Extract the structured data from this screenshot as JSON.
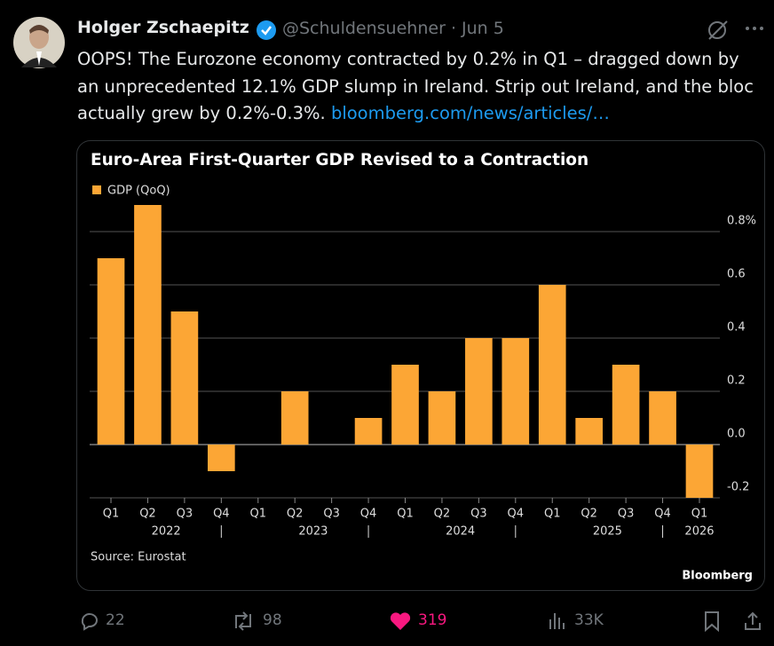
{
  "tweet": {
    "author": "Holger Zschaepitz",
    "handle": "@Schuldensuehner",
    "date": "· Jun 5",
    "text": "OOPS! The Eurozone economy contracted by 0.2% in Q1 – dragged down by an unprecedented 12.1% GDP slump  in Ireland. Strip out Ireland, and the bloc actually grew by 0.2%-0.3%.",
    "link": "bloomberg.com/news/articles/…",
    "replies": 22,
    "reposts": 98,
    "likes": 319,
    "views": "33K"
  },
  "chart_data": {
    "type": "bar",
    "title": "Euro-Area First-Quarter GDP Revised to a Contraction",
    "legend": "GDP (QoQ)",
    "source": "Source: Eurostat",
    "brand": "Bloomberg",
    "categories": [
      "Q1",
      "Q2",
      "Q3",
      "Q4",
      "Q1",
      "Q2",
      "Q3",
      "Q4",
      "Q1",
      "Q2",
      "Q3",
      "Q4",
      "Q1",
      "Q2",
      "Q3",
      "Q4",
      "Q1"
    ],
    "years": [
      "2022",
      "2023",
      "2024",
      "2025",
      "2026"
    ],
    "values": [
      0.7,
      0.9,
      0.5,
      -0.1,
      0.0,
      0.2,
      0.0,
      0.1,
      0.3,
      0.2,
      0.4,
      0.4,
      0.6,
      0.1,
      0.3,
      0.2,
      -0.2
    ],
    "color": "#fca635",
    "ylim": [
      -0.2,
      0.92
    ],
    "yticks": [
      -0.2,
      {
        "value": 0,
        "label": "0.0"
      },
      0.2,
      0.4,
      0.6,
      {
        "value": 0.8,
        "label": "0.8%"
      }
    ],
    "grid": true
  }
}
